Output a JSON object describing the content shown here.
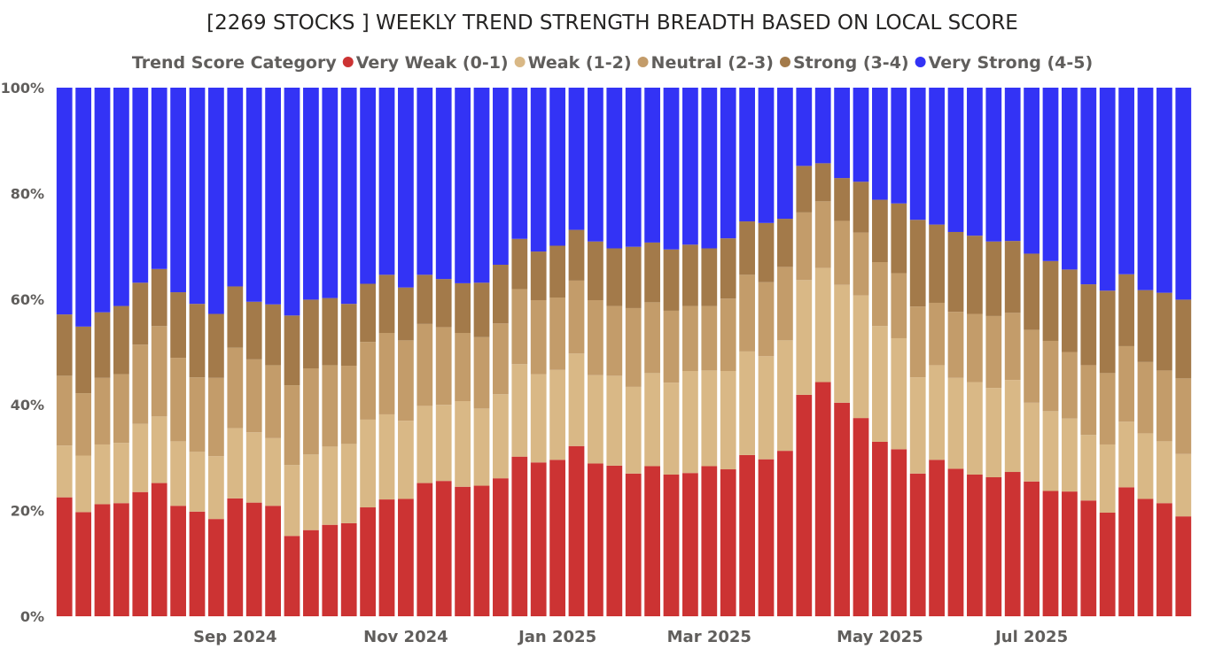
{
  "chart_data": {
    "type": "bar",
    "stacked": "percent",
    "title": "[2269 STOCKS ] WEEKLY TREND STRENGTH BREADTH BASED ON LOCAL SCORE",
    "legend": {
      "title": "Trend Score Category",
      "position": "top"
    },
    "y_ticks": [
      "100%",
      "80%",
      "60%",
      "40%",
      "20%",
      "0%"
    ],
    "ylim": [
      0,
      100
    ],
    "x_tick_labels": [
      {
        "label": "Sep 2024",
        "bar": 9
      },
      {
        "label": "Nov 2024",
        "bar": 18
      },
      {
        "label": "Jan 2025",
        "bar": 26
      },
      {
        "label": "Mar 2025",
        "bar": 34
      },
      {
        "label": "May 2025",
        "bar": 43
      },
      {
        "label": "Jul 2025",
        "bar": 51
      }
    ],
    "series": [
      {
        "name": "Very Weak (0-1)",
        "color": "#cc3333",
        "values": [
          22.5,
          19.7,
          21.2,
          21.4,
          23.5,
          25.2,
          20.9,
          19.8,
          18.4,
          22.3,
          21.5,
          20.9,
          15.2,
          16.3,
          17.3,
          17.6,
          20.6,
          22.1,
          22.2,
          25.2,
          25.6,
          24.5,
          24.7,
          26.1,
          30.2,
          29.1,
          29.6,
          32.2,
          28.9,
          28.5,
          27.0,
          28.4,
          26.8,
          27.1,
          28.4,
          27.8,
          30.5,
          29.7,
          31.3,
          41.9,
          44.3,
          40.4,
          37.5,
          33.0,
          31.6,
          27.0,
          29.6,
          27.9,
          26.8,
          26.3,
          27.3,
          25.5,
          23.7,
          23.6,
          21.9,
          19.6,
          24.4,
          22.2,
          21.4,
          18.9
        ]
      },
      {
        "name": "Weak (1-2)",
        "color": "#d9b886",
        "values": [
          9.8,
          10.7,
          11.3,
          11.4,
          12.9,
          12.6,
          12.2,
          11.3,
          11.9,
          13.3,
          13.3,
          12.8,
          13.4,
          14.3,
          14.8,
          15.0,
          16.6,
          16.1,
          14.8,
          14.6,
          14.4,
          16.2,
          14.6,
          15.9,
          17.5,
          16.7,
          17.0,
          17.5,
          16.7,
          17.0,
          16.4,
          17.6,
          17.4,
          19.3,
          18.1,
          18.6,
          19.6,
          19.5,
          20.9,
          21.7,
          21.6,
          22.3,
          23.2,
          21.9,
          21.0,
          18.2,
          17.9,
          17.2,
          17.5,
          16.9,
          17.4,
          14.9,
          15.1,
          13.8,
          12.4,
          12.9,
          12.4,
          12.4,
          11.7,
          11.8
        ]
      },
      {
        "name": "Neutral (2-3)",
        "color": "#c39c6a",
        "values": [
          13.2,
          11.8,
          12.6,
          13.0,
          15.0,
          17.1,
          15.8,
          14.1,
          14.8,
          15.2,
          13.8,
          13.8,
          15.1,
          16.3,
          15.4,
          14.8,
          14.7,
          15.4,
          15.2,
          15.5,
          14.7,
          12.9,
          13.5,
          13.4,
          14.2,
          14.0,
          13.7,
          13.8,
          14.2,
          13.2,
          14.9,
          13.4,
          13.6,
          12.3,
          12.2,
          13.7,
          14.5,
          14.0,
          13.9,
          12.8,
          12.6,
          12.1,
          11.9,
          12.1,
          12.3,
          13.4,
          11.8,
          12.5,
          12.9,
          13.6,
          12.7,
          13.8,
          13.3,
          12.6,
          13.2,
          13.5,
          14.3,
          13.5,
          13.4,
          14.3
        ]
      },
      {
        "name": "Strong (3-4)",
        "color": "#a37a4a",
        "values": [
          11.6,
          12.6,
          12.4,
          12.9,
          11.7,
          10.8,
          12.4,
          13.9,
          12.1,
          11.6,
          10.9,
          11.5,
          13.2,
          13.0,
          12.7,
          11.7,
          11.0,
          11.0,
          10.0,
          9.3,
          9.1,
          9.4,
          10.3,
          11.1,
          9.5,
          9.2,
          9.8,
          9.6,
          11.1,
          10.9,
          11.6,
          11.3,
          11.6,
          11.6,
          10.9,
          11.4,
          10.1,
          11.2,
          9.1,
          8.8,
          7.2,
          8.1,
          9.6,
          11.8,
          13.2,
          16.4,
          14.8,
          15.1,
          14.8,
          14.1,
          13.6,
          14.4,
          15.1,
          15.6,
          15.3,
          15.6,
          13.6,
          13.6,
          14.7,
          14.9
        ]
      },
      {
        "name": "Very Strong (4-5)",
        "color": "#3333f5",
        "values": [
          42.9,
          45.2,
          42.5,
          41.3,
          36.9,
          34.3,
          38.7,
          40.9,
          42.8,
          37.6,
          40.5,
          41.0,
          43.1,
          40.1,
          39.8,
          40.9,
          37.1,
          35.4,
          37.8,
          35.4,
          36.2,
          37.0,
          36.9,
          33.5,
          28.6,
          31.0,
          29.9,
          26.9,
          29.1,
          30.4,
          30.1,
          29.3,
          30.6,
          29.7,
          30.4,
          28.5,
          25.3,
          25.6,
          24.8,
          14.8,
          14.3,
          17.1,
          17.8,
          21.2,
          21.9,
          25.0,
          25.9,
          27.3,
          28.0,
          29.1,
          29.0,
          31.4,
          32.8,
          34.4,
          37.2,
          38.4,
          35.3,
          38.3,
          38.8,
          40.1
        ]
      }
    ]
  }
}
